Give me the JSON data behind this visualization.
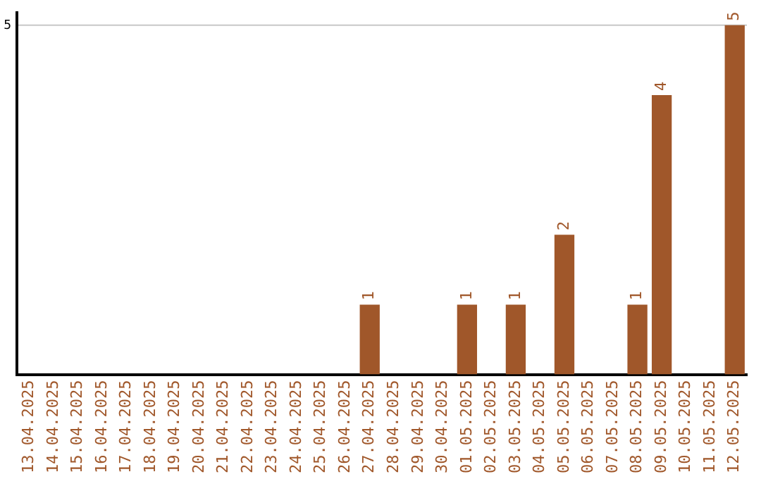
{
  "chart_data": {
    "type": "bar",
    "categories": [
      "13.04.2025",
      "14.04.2025",
      "15.04.2025",
      "16.04.2025",
      "17.04.2025",
      "18.04.2025",
      "19.04.2025",
      "20.04.2025",
      "21.04.2025",
      "22.04.2025",
      "23.04.2025",
      "24.04.2025",
      "25.04.2025",
      "26.04.2025",
      "27.04.2025",
      "28.04.2025",
      "29.04.2025",
      "30.04.2025",
      "01.05.2025",
      "02.05.2025",
      "03.05.2025",
      "04.05.2025",
      "05.05.2025",
      "06.05.2025",
      "07.05.2025",
      "08.05.2025",
      "09.05.2025",
      "10.05.2025",
      "11.05.2025",
      "12.05.2025"
    ],
    "values": [
      null,
      null,
      null,
      null,
      null,
      null,
      null,
      null,
      null,
      null,
      null,
      null,
      null,
      null,
      1,
      null,
      null,
      null,
      1,
      null,
      1,
      null,
      2,
      null,
      null,
      1,
      4,
      null,
      null,
      5
    ],
    "value_labels": [
      null,
      null,
      null,
      null,
      null,
      null,
      null,
      null,
      null,
      null,
      null,
      null,
      null,
      null,
      "1",
      null,
      null,
      null,
      "1",
      null,
      "1",
      null,
      "2",
      null,
      null,
      "1",
      "4",
      null,
      null,
      "5"
    ],
    "color": "#a0572a",
    "ylim": [
      0,
      5.2
    ],
    "ref_lines": [
      {
        "axis": "y",
        "value": 5,
        "label": "5",
        "color": "#c8c8c8"
      }
    ],
    "legend": false
  }
}
